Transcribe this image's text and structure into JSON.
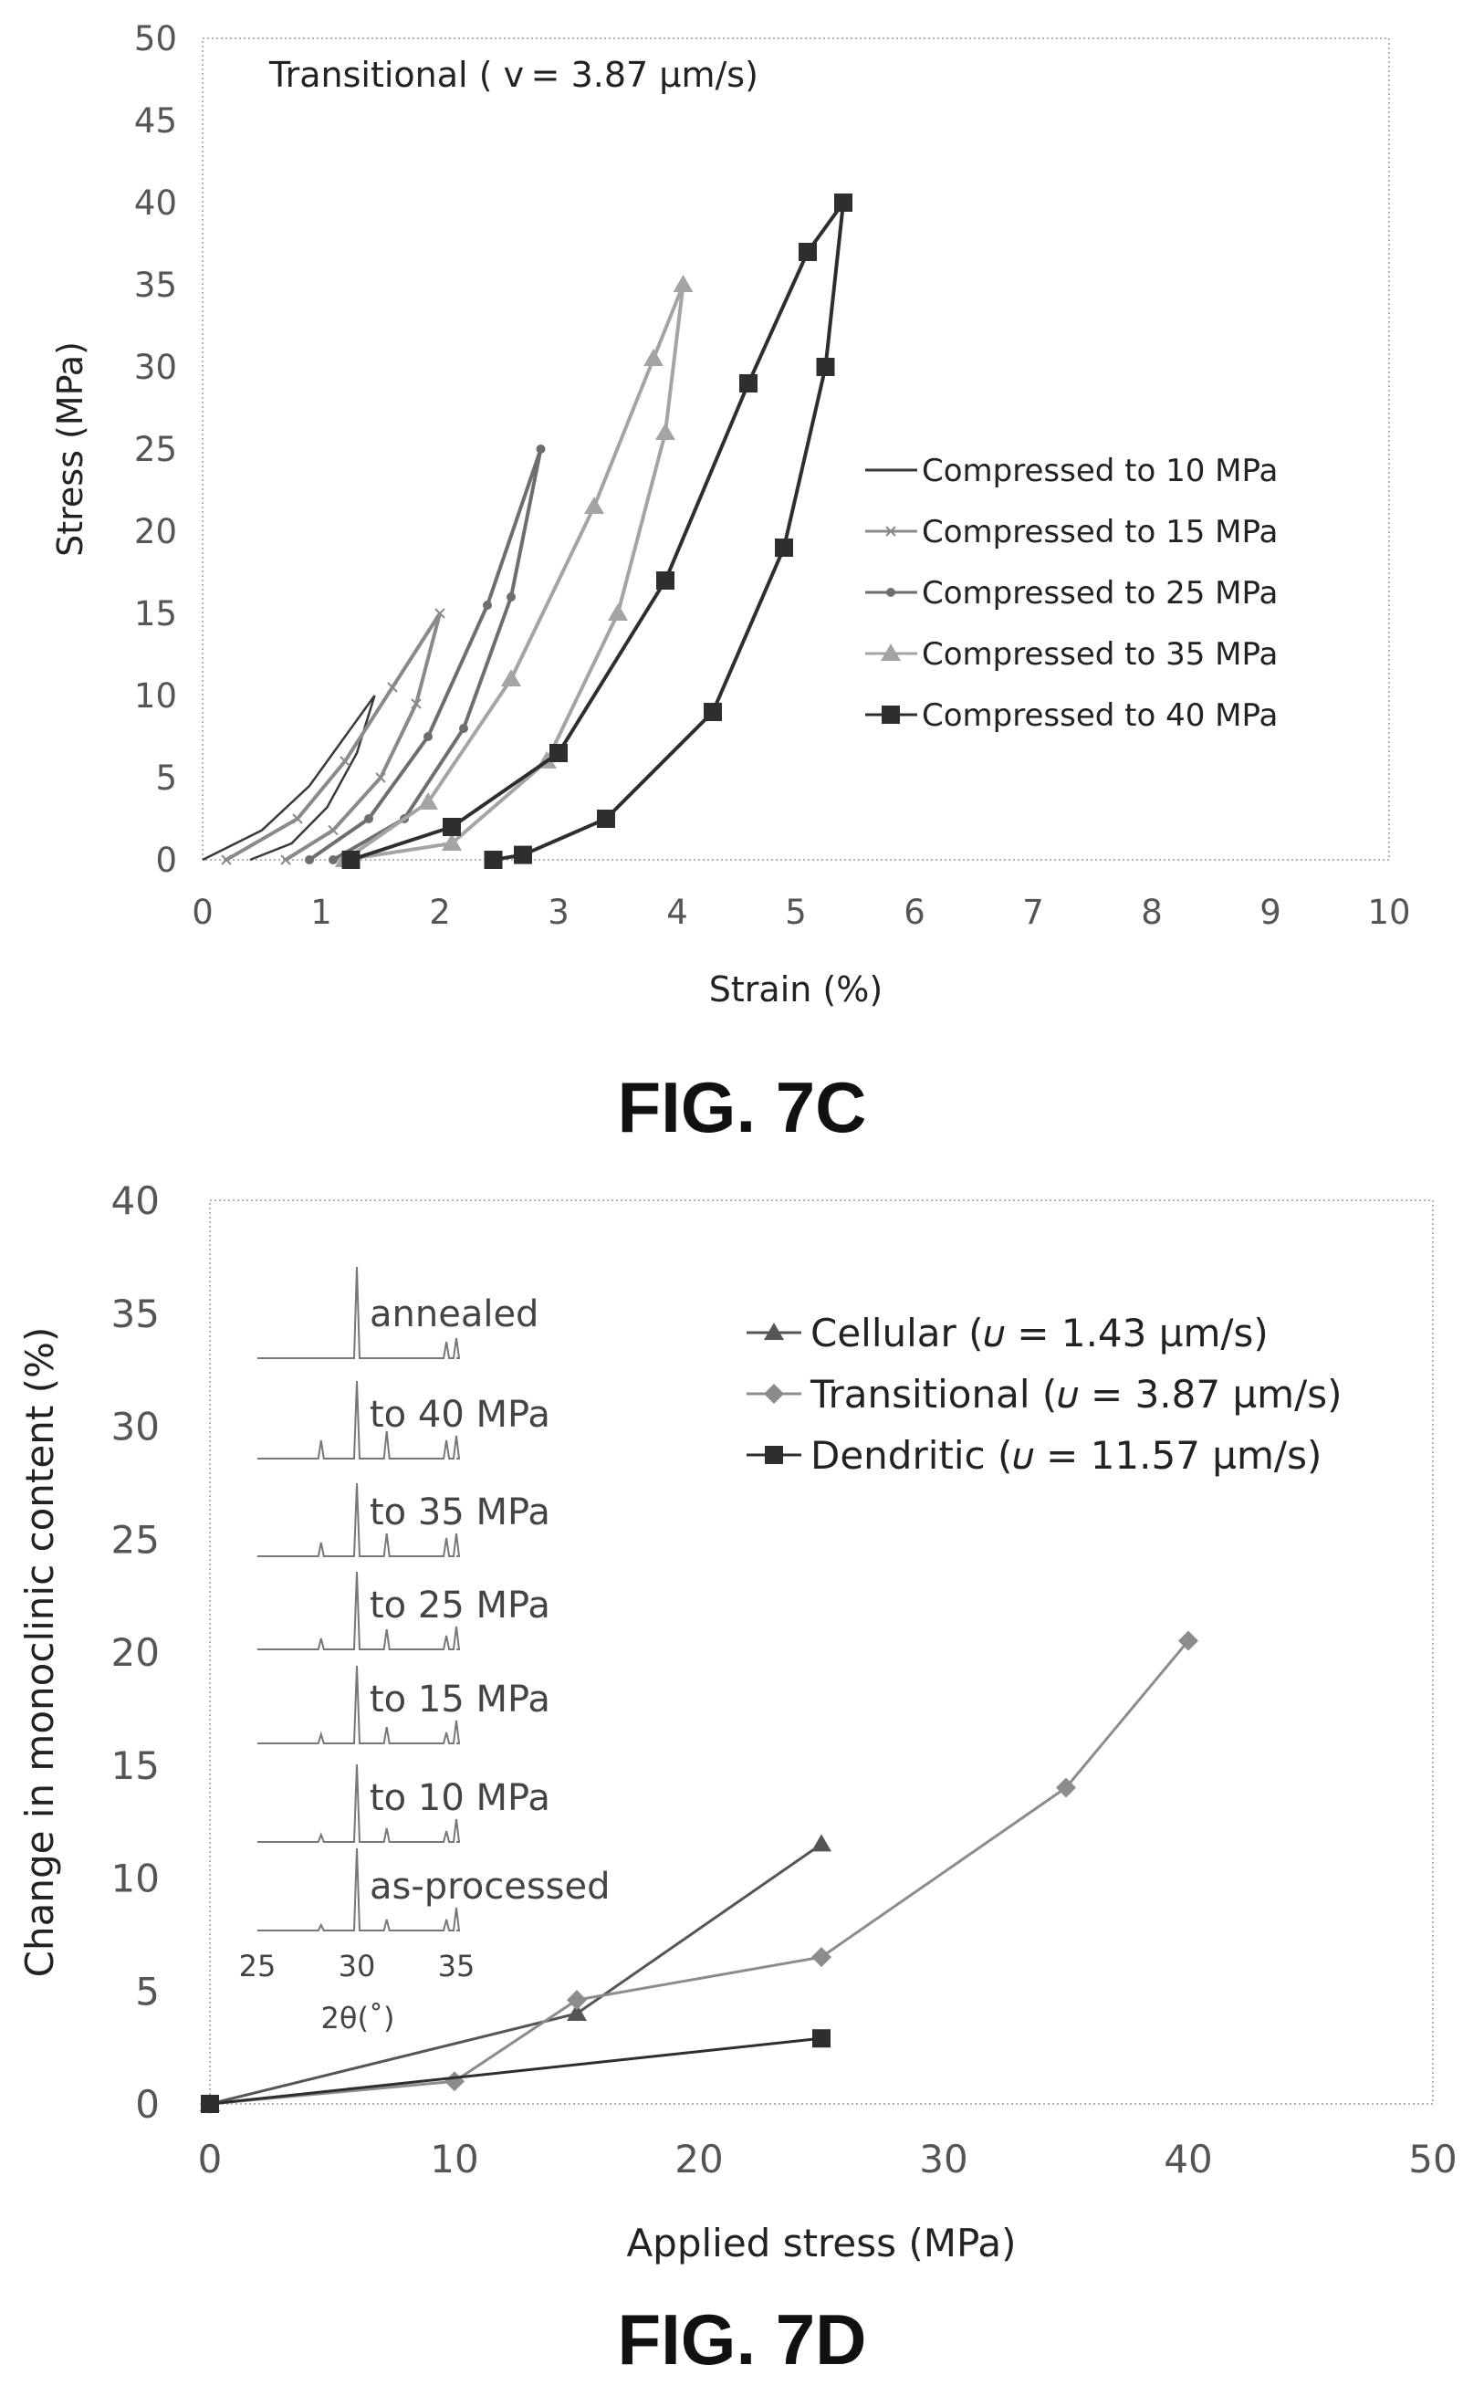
{
  "figure_c": {
    "caption": "FIG. 7C"
  },
  "figure_d": {
    "caption": "FIG. 7D"
  },
  "chart_data": [
    {
      "type": "line",
      "title": "Transitional ( v = 3.87 µm/s)",
      "xlabel": "Strain (%)",
      "ylabel": "Stress (MPa)",
      "xlim": [
        0,
        10
      ],
      "ylim": [
        0,
        50
      ],
      "xticks": [
        "0",
        "1",
        "2",
        "3",
        "4",
        "5",
        "6",
        "7",
        "8",
        "9",
        "10"
      ],
      "yticks": [
        "0",
        "5",
        "10",
        "15",
        "20",
        "25",
        "30",
        "35",
        "40",
        "45",
        "50"
      ],
      "grid": false,
      "legend_position": "right",
      "series": [
        {
          "name": "Compressed to 10 MPa",
          "color": "#3a3a3a",
          "marker": "none",
          "loading": [
            [
              0.0,
              0
            ],
            [
              0.5,
              1.8
            ],
            [
              0.9,
              4.5
            ],
            [
              1.2,
              7.5
            ],
            [
              1.45,
              10
            ]
          ],
          "unloading": [
            [
              1.45,
              10
            ],
            [
              1.3,
              6.5
            ],
            [
              1.05,
              3.2
            ],
            [
              0.75,
              1.0
            ],
            [
              0.4,
              0
            ]
          ]
        },
        {
          "name": "Compressed to 15 MPa",
          "color": "#8a8a8a",
          "marker": "x",
          "loading": [
            [
              0.2,
              0
            ],
            [
              0.8,
              2.5
            ],
            [
              1.2,
              6
            ],
            [
              1.6,
              10.5
            ],
            [
              2.0,
              15
            ]
          ],
          "unloading": [
            [
              2.0,
              15
            ],
            [
              1.8,
              9.5
            ],
            [
              1.5,
              5
            ],
            [
              1.1,
              1.8
            ],
            [
              0.7,
              0
            ]
          ]
        },
        {
          "name": "Compressed to 25 MPa",
          "color": "#6e6e6e",
          "marker": "circle",
          "loading": [
            [
              0.9,
              0
            ],
            [
              1.4,
              2.5
            ],
            [
              1.9,
              7.5
            ],
            [
              2.4,
              15.5
            ],
            [
              2.85,
              25
            ]
          ],
          "unloading": [
            [
              2.85,
              25
            ],
            [
              2.6,
              16
            ],
            [
              2.2,
              8
            ],
            [
              1.7,
              2.5
            ],
            [
              1.1,
              0
            ]
          ]
        },
        {
          "name": "Compressed to 35 MPa",
          "color": "#a4a4a4",
          "marker": "triangle",
          "loading": [
            [
              1.2,
              0
            ],
            [
              1.9,
              3.5
            ],
            [
              2.6,
              11
            ],
            [
              3.3,
              21.5
            ],
            [
              3.8,
              30.5
            ],
            [
              4.05,
              35
            ]
          ],
          "unloading": [
            [
              4.05,
              35
            ],
            [
              3.9,
              26
            ],
            [
              3.5,
              15
            ],
            [
              2.9,
              6
            ],
            [
              2.1,
              1
            ],
            [
              1.2,
              0
            ]
          ]
        },
        {
          "name": "Compressed to 40 MPa",
          "color": "#2e2e2e",
          "marker": "square",
          "loading": [
            [
              1.25,
              0
            ],
            [
              2.1,
              2
            ],
            [
              3.0,
              6.5
            ],
            [
              3.9,
              17
            ],
            [
              4.6,
              29
            ],
            [
              5.1,
              37
            ],
            [
              5.4,
              40
            ]
          ],
          "unloading": [
            [
              5.4,
              40
            ],
            [
              5.25,
              30
            ],
            [
              4.9,
              19
            ],
            [
              4.3,
              9
            ],
            [
              3.4,
              2.5
            ],
            [
              2.7,
              0.3
            ],
            [
              2.45,
              0
            ]
          ]
        }
      ]
    },
    {
      "type": "line",
      "title": "",
      "xlabel": "Applied stress (MPa)",
      "ylabel": "Change in monoclinic content (%)",
      "xlim": [
        0,
        50
      ],
      "ylim": [
        0,
        40
      ],
      "xticks": [
        "0",
        "10",
        "20",
        "30",
        "40",
        "50"
      ],
      "yticks": [
        "0",
        "5",
        "10",
        "15",
        "20",
        "25",
        "30",
        "35",
        "40"
      ],
      "grid": false,
      "legend_position": "top-right",
      "series": [
        {
          "name": "Cellular (𝜐 = 1.43 µm/s)",
          "color": "#555555",
          "marker": "triangle",
          "x": [
            0,
            15,
            25
          ],
          "y": [
            0,
            4,
            11.5
          ]
        },
        {
          "name": "Transitional (𝜐 = 3.87 µm/s)",
          "color": "#8c8c8c",
          "marker": "diamond",
          "x": [
            0,
            10,
            15,
            25,
            35,
            40
          ],
          "y": [
            0,
            1,
            4.6,
            6.5,
            14,
            20.5
          ]
        },
        {
          "name": "Dendritic (𝜐 = 11.57 µm/s)",
          "color": "#2e2e2e",
          "marker": "square",
          "x": [
            0,
            25
          ],
          "y": [
            0,
            2.9
          ]
        }
      ],
      "inset": {
        "xlabel": "2θ(˚)",
        "xticks": [
          "25",
          "30",
          "35"
        ],
        "xlim": [
          25,
          35
        ],
        "traces": [
          {
            "label": "annealed",
            "peaks": [
              [
                30,
                1.0
              ],
              [
                34.5,
                0.18
              ],
              [
                35,
                0.22
              ]
            ]
          },
          {
            "label": "to 40 MPa",
            "peaks": [
              [
                28.2,
                0.2
              ],
              [
                30,
                0.85
              ],
              [
                31.5,
                0.3
              ],
              [
                34.5,
                0.2
              ],
              [
                35,
                0.25
              ]
            ]
          },
          {
            "label": "to 35 MPa",
            "peaks": [
              [
                28.2,
                0.15
              ],
              [
                30,
                0.8
              ],
              [
                31.5,
                0.25
              ],
              [
                34.5,
                0.2
              ],
              [
                35,
                0.25
              ]
            ]
          },
          {
            "label": "to 25 MPa",
            "peaks": [
              [
                28.2,
                0.12
              ],
              [
                30,
                0.85
              ],
              [
                31.5,
                0.22
              ],
              [
                34.5,
                0.15
              ],
              [
                35,
                0.25
              ]
            ]
          },
          {
            "label": "to 15 MPa",
            "peaks": [
              [
                28.2,
                0.1
              ],
              [
                30,
                0.85
              ],
              [
                31.5,
                0.18
              ],
              [
                34.5,
                0.12
              ],
              [
                35,
                0.25
              ]
            ]
          },
          {
            "label": "to 10 MPa",
            "peaks": [
              [
                28.2,
                0.08
              ],
              [
                30,
                0.85
              ],
              [
                31.5,
                0.15
              ],
              [
                34.5,
                0.12
              ],
              [
                35,
                0.25
              ]
            ]
          },
          {
            "label": "as-processed",
            "peaks": [
              [
                28.2,
                0.06
              ],
              [
                30,
                0.9
              ],
              [
                31.5,
                0.12
              ],
              [
                34.5,
                0.12
              ],
              [
                35,
                0.25
              ]
            ]
          }
        ]
      }
    }
  ]
}
